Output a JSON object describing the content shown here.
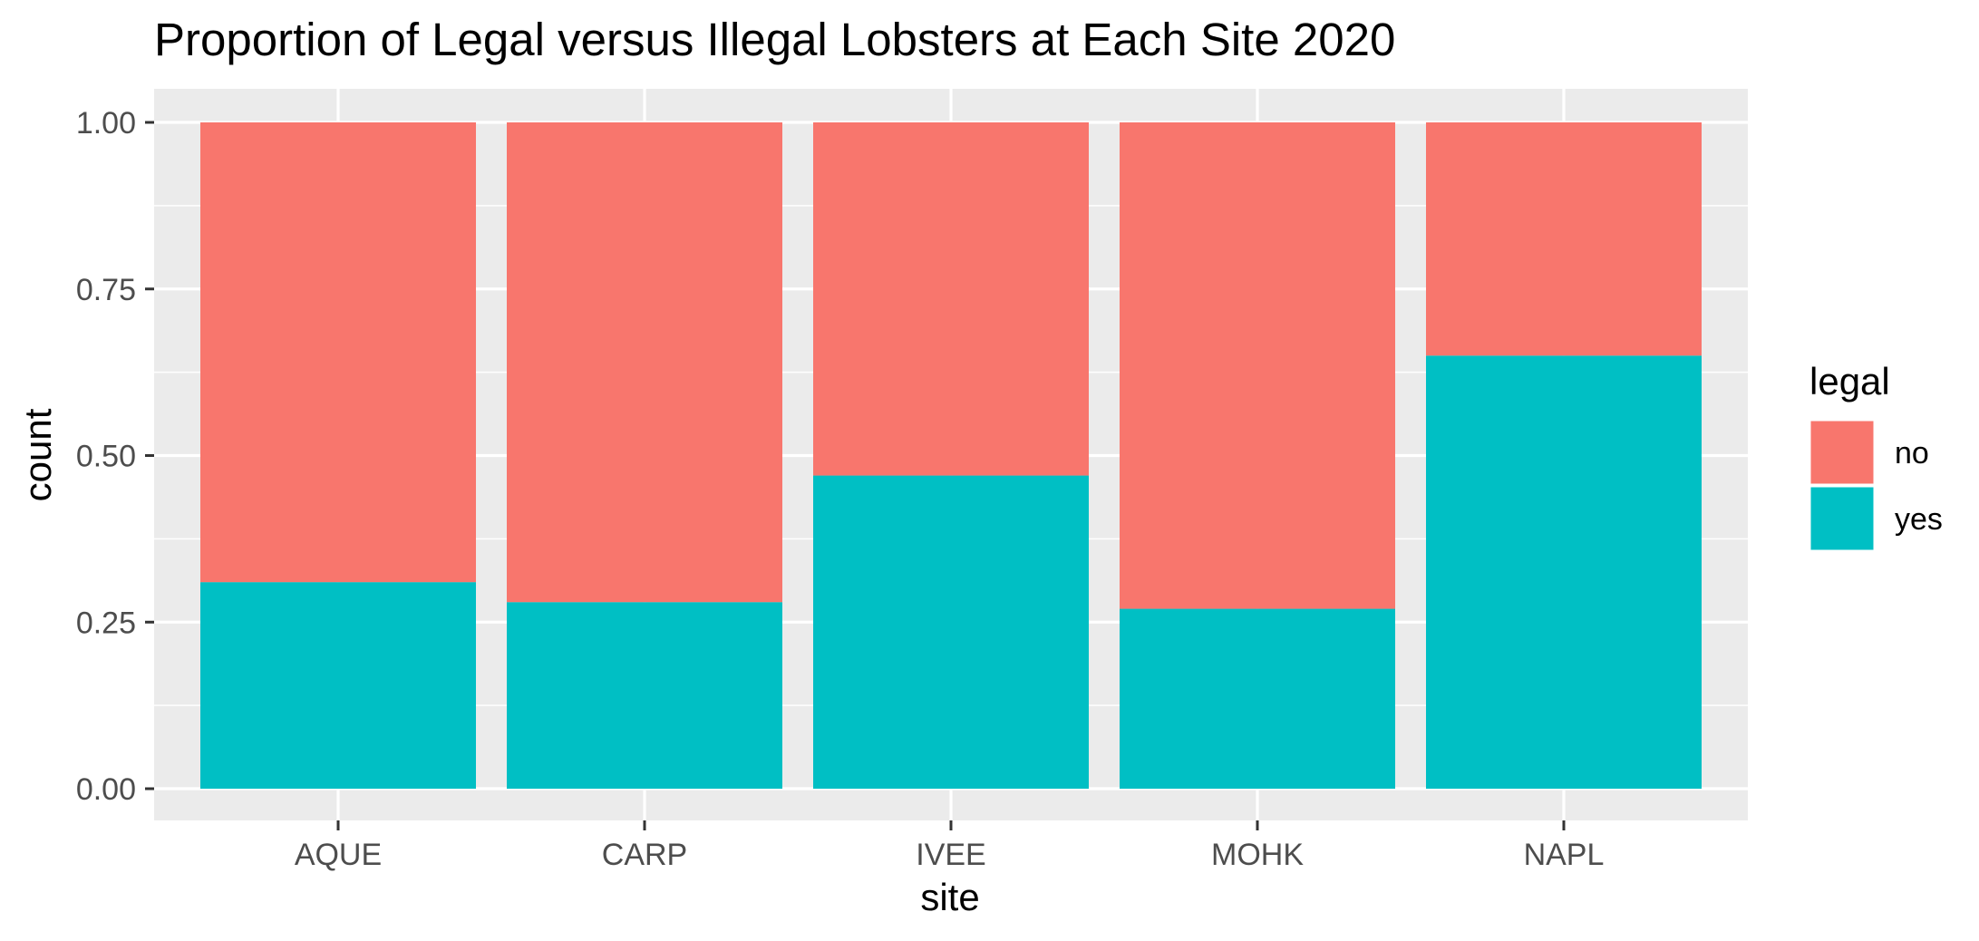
{
  "chart_data": {
    "type": "bar",
    "stacked": true,
    "title": "Proportion of Legal versus Illegal Lobsters at Each Site 2020",
    "xlabel": "site",
    "ylabel": "count",
    "categories": [
      "AQUE",
      "CARP",
      "IVEE",
      "MOHK",
      "NAPL"
    ],
    "series": [
      {
        "name": "yes",
        "color": "#00BFC4",
        "values": [
          0.31,
          0.28,
          0.47,
          0.27,
          0.65
        ]
      },
      {
        "name": "no",
        "color": "#F8766D",
        "values": [
          0.69,
          0.72,
          0.53,
          0.73,
          0.35
        ]
      }
    ],
    "ylim": [
      0,
      1
    ],
    "yticks": [
      0,
      0.25,
      0.5,
      0.75,
      1
    ],
    "ytick_labels": [
      "0.00",
      "0.25",
      "0.50",
      "0.75",
      "1.00"
    ],
    "legend": {
      "title": "legal",
      "position": "right",
      "entries": [
        {
          "label": "no",
          "color": "#F8766D"
        },
        {
          "label": "yes",
          "color": "#00BFC4"
        }
      ]
    },
    "grid": true,
    "panel_background": "#EBEBEB",
    "grid_color": "#FFFFFF"
  }
}
